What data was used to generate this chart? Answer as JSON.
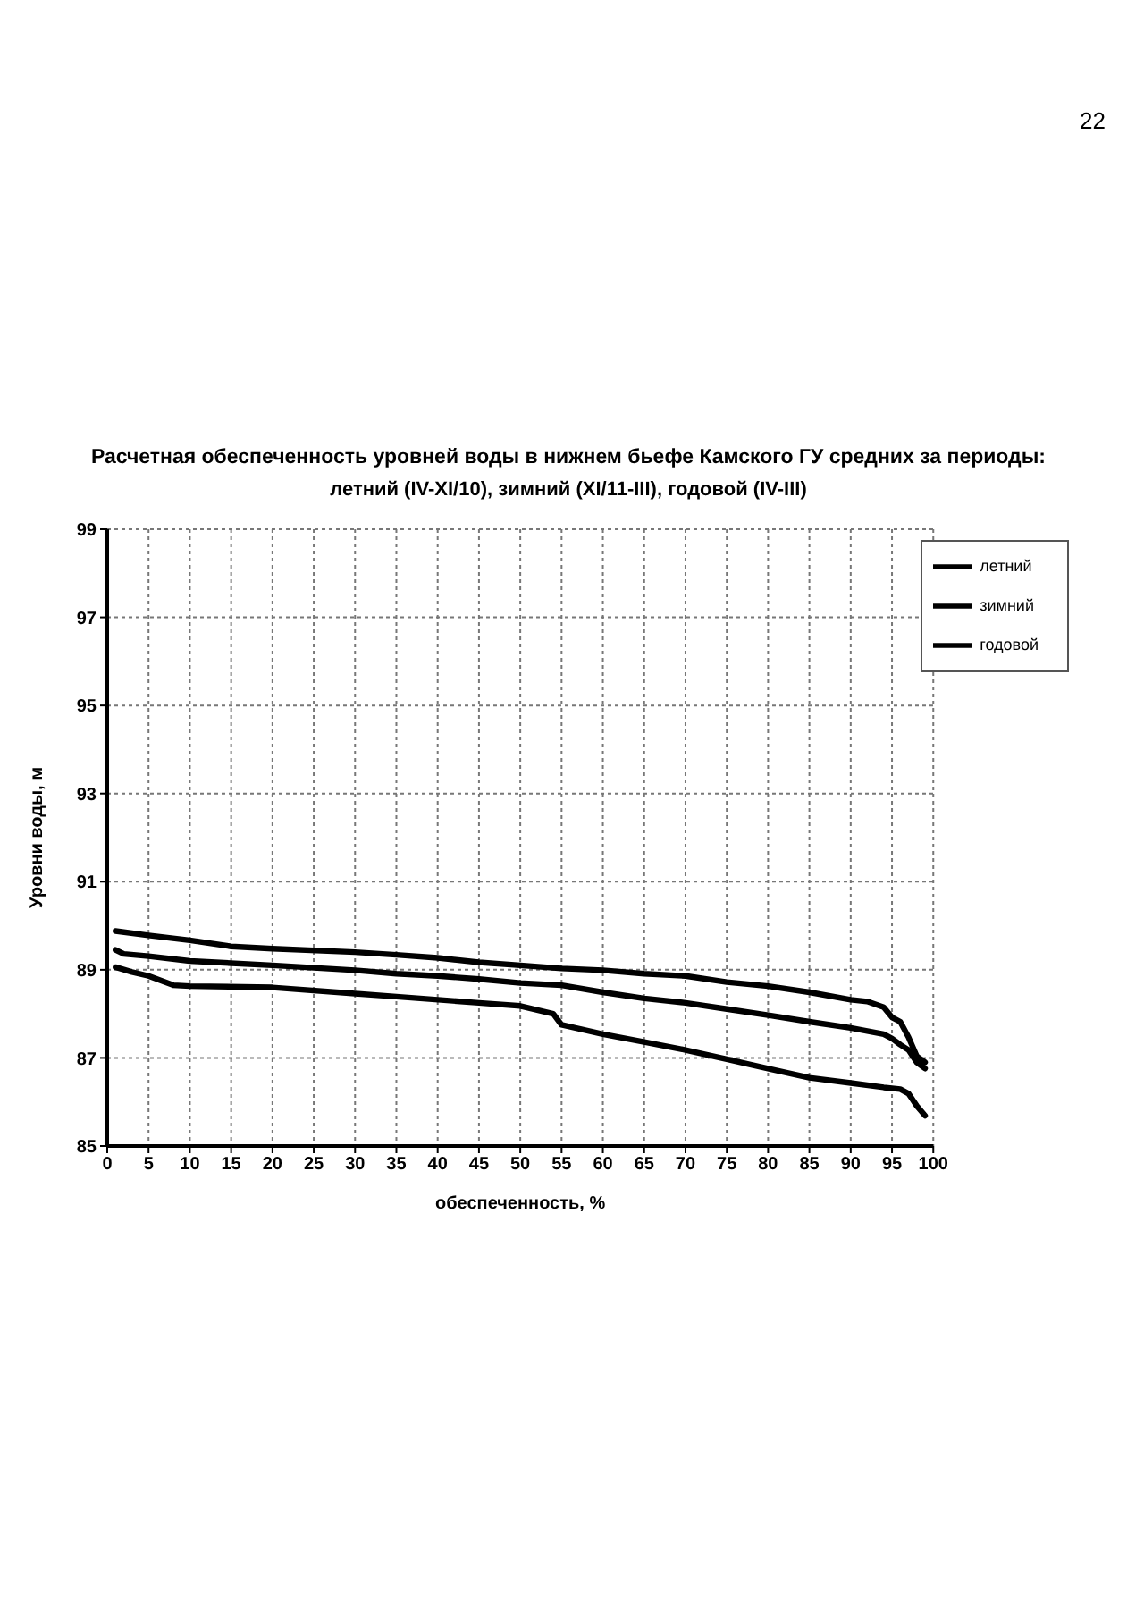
{
  "chart_data": {
    "type": "line",
    "title": "Расчетная обеспеченность уровней воды в нижнем бьефе Камского ГУ средних за периоды:",
    "subtitle": "летний (IV-XI/10), зимний (XI/11-III), годовой (IV-III)",
    "xlabel": "обеспеченность, %",
    "ylabel": "Уровни воды, м",
    "xlim": [
      0,
      100
    ],
    "xticks": [
      0,
      5,
      10,
      15,
      20,
      25,
      30,
      35,
      40,
      45,
      50,
      55,
      60,
      65,
      70,
      75,
      80,
      85,
      90,
      95,
      100
    ],
    "ylim": [
      85,
      99
    ],
    "yticks": [
      85,
      87,
      89,
      91,
      93,
      95,
      97,
      99
    ],
    "grid": true,
    "legend": "top right",
    "marker": "none",
    "line_style": "solid",
    "series": [
      {
        "name": "летний",
        "color": "#000000",
        "x": [
          1,
          5,
          10,
          15,
          20,
          30,
          35,
          40,
          45,
          50,
          55,
          60,
          65,
          70,
          75,
          80,
          85,
          90,
          92,
          94,
          95,
          96,
          97,
          98,
          99
        ],
        "values": [
          89.88,
          89.78,
          89.67,
          89.53,
          89.48,
          89.4,
          89.34,
          89.27,
          89.17,
          89.1,
          89.03,
          88.99,
          88.91,
          88.86,
          88.72,
          88.63,
          88.49,
          88.32,
          88.28,
          88.15,
          87.92,
          87.82,
          87.47,
          87.04,
          86.9
        ]
      },
      {
        "name": "зимний",
        "color": "#000000",
        "x": [
          1,
          3,
          5,
          8,
          10,
          20,
          30,
          35,
          45,
          50,
          54,
          55,
          60,
          65,
          70,
          75,
          80,
          85,
          90,
          94,
          96,
          97,
          98,
          99
        ],
        "values": [
          89.06,
          88.95,
          88.86,
          88.65,
          88.63,
          88.6,
          88.46,
          88.39,
          88.25,
          88.18,
          88.0,
          87.75,
          87.54,
          87.36,
          87.18,
          86.97,
          86.76,
          86.55,
          86.43,
          86.33,
          86.29,
          86.19,
          85.91,
          85.69
        ]
      },
      {
        "name": "годовой",
        "color": "#000000",
        "x": [
          1,
          2,
          5,
          10,
          20,
          30,
          35,
          40,
          45,
          50,
          55,
          60,
          65,
          70,
          75,
          80,
          85,
          90,
          94,
          95,
          96,
          97,
          98,
          99
        ],
        "values": [
          89.45,
          89.36,
          89.31,
          89.2,
          89.1,
          88.99,
          88.91,
          88.86,
          88.79,
          88.7,
          88.65,
          88.49,
          88.35,
          88.25,
          88.11,
          87.97,
          87.82,
          87.68,
          87.54,
          87.44,
          87.3,
          87.18,
          86.9,
          86.76
        ]
      }
    ],
    "annotations": [
      "22"
    ]
  }
}
